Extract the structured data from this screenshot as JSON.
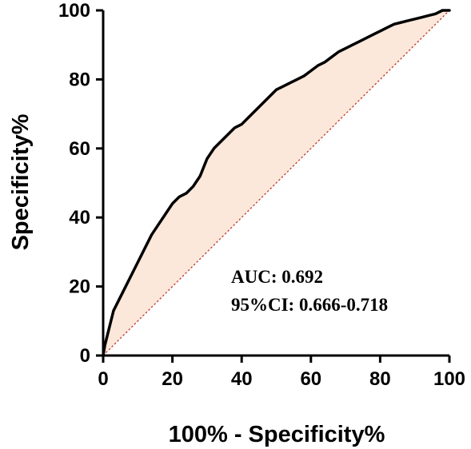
{
  "chart_data": {
    "type": "line",
    "title": "",
    "xlabel": "100% - Specificity%",
    "ylabel": "Specificity%",
    "xlim": [
      0,
      100
    ],
    "ylim": [
      0,
      100
    ],
    "xticks": [
      "0",
      "20",
      "40",
      "60",
      "80",
      "100"
    ],
    "yticks": [
      "0",
      "20",
      "40",
      "60",
      "80",
      "100"
    ],
    "grid": false,
    "legend": "none",
    "fill_color": "#fbe8da",
    "curve_color": "#000000",
    "reference_color": "#c0392b",
    "annotations": [
      "AUC: 0.692",
      "95%CI: 0.666-0.718"
    ],
    "series": [
      {
        "kind": "roc-curve",
        "x": [
          0,
          0.5,
          1,
          2,
          3,
          4,
          6,
          8,
          10,
          12,
          14,
          16,
          18,
          20,
          22,
          24,
          26,
          28,
          30,
          32,
          34,
          36,
          38,
          40,
          42,
          44,
          46,
          48,
          50,
          52,
          54,
          56,
          58,
          60,
          62,
          64,
          66,
          68,
          70,
          72,
          74,
          76,
          78,
          80,
          82,
          84,
          86,
          88,
          90,
          92,
          94,
          96,
          98,
          100
        ],
        "y": [
          0,
          3,
          5,
          9,
          13,
          15,
          19,
          23,
          27,
          31,
          35,
          38,
          41,
          44,
          46,
          47,
          49,
          52,
          57,
          60,
          62,
          64,
          66,
          67,
          69,
          71,
          73,
          75,
          77,
          78,
          79,
          80,
          81,
          82.5,
          84,
          85,
          86.5,
          88,
          89,
          90,
          91,
          92,
          93,
          94,
          95,
          96,
          96.5,
          97,
          97.5,
          98,
          98.5,
          99,
          100,
          100
        ]
      },
      {
        "kind": "reference-line",
        "x": [
          0,
          100
        ],
        "y": [
          0,
          100
        ]
      }
    ]
  }
}
